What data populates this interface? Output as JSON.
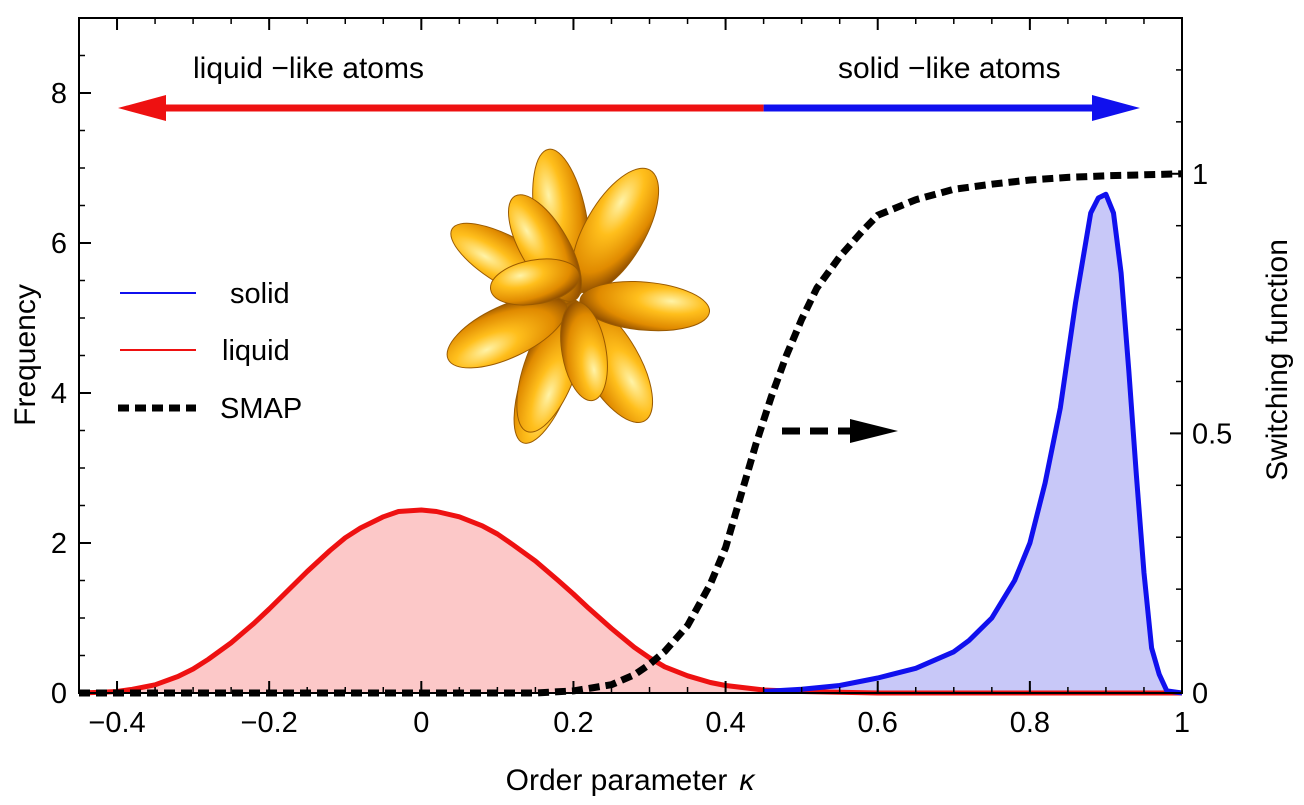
{
  "chart_data": {
    "type": "area",
    "xlabel": "Order parameter",
    "xlabel_symbol": "κ",
    "ylabel": "Frequency",
    "y2label": "Switching  function",
    "xlim": [
      -0.45,
      1.0
    ],
    "ylim": [
      0,
      9.0
    ],
    "y2lim": [
      0,
      1.3
    ],
    "x_ticks": [
      -0.4,
      -0.2,
      0,
      0.2,
      0.4,
      0.6,
      0.8,
      1
    ],
    "x_tick_labels": [
      "−0.4",
      "−0.2",
      "0",
      "0.2",
      "0.4",
      "0.6",
      "0.8",
      "1"
    ],
    "y_ticks": [
      0,
      2,
      4,
      6,
      8
    ],
    "y_tick_labels": [
      "0",
      "2",
      "4",
      "6",
      "8"
    ],
    "y2_ticks": [
      0,
      0.5,
      1
    ],
    "y2_tick_labels": [
      "0",
      "0.5",
      "1"
    ],
    "annotations": {
      "liquid_side": "liquid −like  atoms",
      "solid_side": "solid −like  atoms",
      "divider_x": 0.45,
      "arrow_y": 7.8
    },
    "legend": {
      "placement": "left",
      "entries": [
        {
          "label": "solid",
          "color": "#1010ee",
          "style": "solid"
        },
        {
          "label": "liquid",
          "color": "#ee1111",
          "style": "solid"
        },
        {
          "label": "SMAP",
          "color": "#000000",
          "style": "dashed"
        }
      ]
    },
    "series": [
      {
        "name": "liquid",
        "axis": "left",
        "color": "#ee1111",
        "fill": "#fcc8c8",
        "x": [
          -0.45,
          -0.42,
          -0.4,
          -0.38,
          -0.35,
          -0.32,
          -0.3,
          -0.28,
          -0.25,
          -0.22,
          -0.2,
          -0.18,
          -0.15,
          -0.12,
          -0.1,
          -0.08,
          -0.05,
          -0.03,
          0,
          0.02,
          0.05,
          0.08,
          0.1,
          0.12,
          0.15,
          0.18,
          0.2,
          0.22,
          0.25,
          0.28,
          0.3,
          0.32,
          0.35,
          0.38,
          0.4,
          0.45,
          0.5,
          0.55,
          0.6,
          0.7,
          0.8,
          0.9,
          0.95,
          1.0
        ],
        "y": [
          0.0,
          0.01,
          0.02,
          0.05,
          0.11,
          0.22,
          0.32,
          0.45,
          0.67,
          0.93,
          1.12,
          1.32,
          1.62,
          1.9,
          2.07,
          2.2,
          2.35,
          2.42,
          2.44,
          2.42,
          2.35,
          2.23,
          2.12,
          1.98,
          1.76,
          1.5,
          1.32,
          1.13,
          0.86,
          0.61,
          0.47,
          0.35,
          0.23,
          0.14,
          0.1,
          0.04,
          0.02,
          0.01,
          0.0,
          0.0,
          0.0,
          0.0,
          0.0,
          0.0
        ]
      },
      {
        "name": "solid",
        "axis": "left",
        "color": "#1010ee",
        "fill": "#c8c8f8",
        "x": [
          0.45,
          0.5,
          0.55,
          0.6,
          0.65,
          0.7,
          0.72,
          0.75,
          0.78,
          0.8,
          0.82,
          0.84,
          0.86,
          0.87,
          0.88,
          0.89,
          0.9,
          0.91,
          0.92,
          0.93,
          0.94,
          0.95,
          0.96,
          0.97,
          0.98,
          1.0
        ],
        "y": [
          0.02,
          0.05,
          0.1,
          0.2,
          0.33,
          0.55,
          0.7,
          1.0,
          1.5,
          2.0,
          2.8,
          3.8,
          5.2,
          5.8,
          6.4,
          6.6,
          6.65,
          6.4,
          5.6,
          4.3,
          2.9,
          1.6,
          0.6,
          0.25,
          0.03,
          0.0
        ]
      },
      {
        "name": "SMAP",
        "axis": "right",
        "color": "#000000",
        "x": [
          -0.45,
          -0.2,
          0,
          0.15,
          0.2,
          0.25,
          0.28,
          0.3,
          0.32,
          0.35,
          0.38,
          0.4,
          0.42,
          0.44,
          0.46,
          0.48,
          0.5,
          0.52,
          0.55,
          0.58,
          0.6,
          0.65,
          0.7,
          0.75,
          0.8,
          0.85,
          0.9,
          0.95,
          1.0
        ],
        "y": [
          0.0,
          0.0,
          0.0,
          0.0,
          0.004,
          0.016,
          0.035,
          0.055,
          0.08,
          0.13,
          0.21,
          0.28,
          0.38,
          0.48,
          0.57,
          0.65,
          0.72,
          0.78,
          0.84,
          0.89,
          0.92,
          0.95,
          0.97,
          0.98,
          0.988,
          0.993,
          0.996,
          0.998,
          1.0
        ]
      }
    ]
  }
}
